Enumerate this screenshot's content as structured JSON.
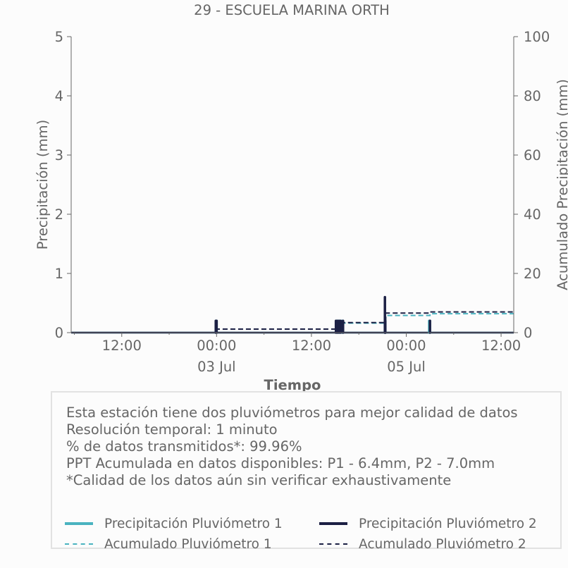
{
  "chart_data": {
    "type": "line",
    "title": "29 - ESCUELA MARINA ORTH",
    "xlabel": "Tiempo",
    "ylabel": "Precipitación (mm)",
    "y2label": "Acumulado Precipitación (mm)",
    "ylim": [
      0,
      5
    ],
    "y2lim": [
      0,
      100
    ],
    "yticks": [
      0,
      1,
      2,
      3,
      4,
      5
    ],
    "y2ticks": [
      0,
      20,
      40,
      60,
      80,
      100
    ],
    "xticks": [
      {
        "t": 12,
        "label": "12:00",
        "sublabel": ""
      },
      {
        "t": 24,
        "label": "00:00",
        "sublabel": "03 Jul"
      },
      {
        "t": 36,
        "label": "12:00",
        "sublabel": ""
      },
      {
        "t": 48,
        "label": "00:00",
        "sublabel": "05 Jul"
      },
      {
        "t": 60,
        "label": "12:00",
        "sublabel": ""
      }
    ],
    "xlim": [
      5.6,
      61.6
    ],
    "grid": false,
    "legend_position": "bottom",
    "series": [
      {
        "name": "Precipitación Pluviómetro 1",
        "color": "#4ab3c0",
        "axis": "left",
        "style": "bars",
        "points": [
          [
            23.9,
            0.2
          ],
          [
            24.0,
            0.2
          ],
          [
            39.2,
            0.2
          ],
          [
            39.4,
            0.2
          ],
          [
            39.6,
            0.2
          ],
          [
            39.9,
            0.2
          ],
          [
            45.3,
            0.2
          ],
          [
            45.35,
            0.2
          ],
          [
            50.9,
            0.2
          ],
          [
            51.0,
            0.2
          ]
        ]
      },
      {
        "name": "Precipitación Pluviómetro 2",
        "color": "#1c2044",
        "axis": "left",
        "style": "bars",
        "points": [
          [
            23.9,
            0.2
          ],
          [
            24.0,
            0.2
          ],
          [
            39.1,
            0.2
          ],
          [
            39.3,
            0.2
          ],
          [
            39.5,
            0.2
          ],
          [
            39.7,
            0.2
          ],
          [
            40.0,
            0.2
          ],
          [
            45.3,
            0.6
          ],
          [
            45.35,
            0.2
          ],
          [
            51.0,
            0.2
          ]
        ]
      },
      {
        "name": "Acumulado Pluviómetro 1",
        "color": "#4ab3c0",
        "axis": "right",
        "style": "dashed",
        "x": [
          5.6,
          23.9,
          24.0,
          39.1,
          40.0,
          45.3,
          45.4,
          51.0,
          61.6
        ],
        "y": [
          0.0,
          0.0,
          1.2,
          1.2,
          3.2,
          3.2,
          5.8,
          6.4,
          6.4
        ]
      },
      {
        "name": "Acumulado Pluviómetro 2",
        "color": "#1c2044",
        "axis": "right",
        "style": "dashed",
        "x": [
          5.6,
          23.9,
          24.0,
          39.1,
          40.0,
          45.3,
          45.4,
          51.0,
          61.6
        ],
        "y": [
          0.0,
          0.0,
          1.2,
          1.2,
          3.4,
          3.4,
          6.6,
          7.0,
          7.0
        ]
      }
    ]
  },
  "info": {
    "lines": [
      "Esta estación tiene dos pluviómetros para mejor calidad de datos",
      "Resolución temporal: 1 minuto",
      "% de datos transmitidos*: 99.96%",
      "PPT Acumulada en datos disponibles: P1 - 6.4mm, P2 - 7.0mm",
      "*Calidad de los datos aún sin verificar exhaustivamente"
    ]
  },
  "legend": {
    "items": [
      {
        "label": "Precipitación Pluviómetro 1",
        "color": "#4ab3c0",
        "style": "solid"
      },
      {
        "label": "Precipitación Pluviómetro 2",
        "color": "#1c2044",
        "style": "solid"
      },
      {
        "label": "Acumulado Pluviómetro 1",
        "color": "#4ab3c0",
        "style": "dashed"
      },
      {
        "label": "Acumulado Pluviómetro 2",
        "color": "#1c2044",
        "style": "dashed"
      }
    ]
  }
}
